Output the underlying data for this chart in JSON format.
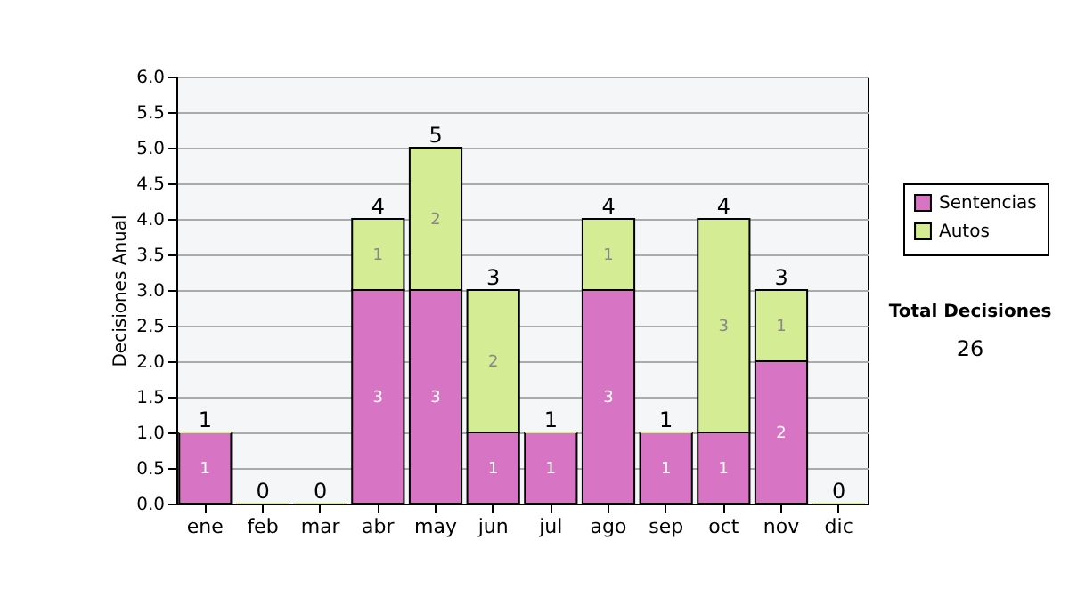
{
  "chart_data": {
    "type": "bar",
    "stacked": true,
    "ylabel": "Decisiones Anual",
    "categories": [
      "ene",
      "feb",
      "mar",
      "abr",
      "may",
      "jun",
      "jul",
      "ago",
      "sep",
      "oct",
      "nov",
      "dic"
    ],
    "series": [
      {
        "name": "Sentencias",
        "color": "#d774c4",
        "values": [
          1,
          0,
          0,
          3,
          3,
          1,
          1,
          3,
          1,
          1,
          2,
          0
        ],
        "value_labels": [
          "1",
          null,
          null,
          "3",
          "3",
          "1",
          "1",
          "3",
          "1",
          "1",
          "2",
          null
        ]
      },
      {
        "name": "Autos",
        "color": "#d4ec94",
        "values": [
          0,
          0,
          0,
          1,
          2,
          2,
          0,
          1,
          0,
          3,
          1,
          0
        ],
        "value_labels": [
          null,
          null,
          null,
          "1",
          "2",
          "2",
          null,
          "1",
          null,
          "3",
          "1",
          null
        ]
      }
    ],
    "totals": [
      "1",
      "0",
      "0",
      "4",
      "5",
      "3",
      "1",
      "4",
      "1",
      "4",
      "3",
      "0"
    ],
    "ylim": [
      0,
      6
    ],
    "yticks": [
      {
        "value": 0,
        "label": "0.0"
      },
      {
        "value": 0.5,
        "label": "0.5"
      },
      {
        "value": 1,
        "label": "1.0"
      },
      {
        "value": 1.5,
        "label": "1.5"
      },
      {
        "value": 2,
        "label": "2.0"
      },
      {
        "value": 2.5,
        "label": "2.5"
      },
      {
        "value": 3,
        "label": "3.0"
      },
      {
        "value": 3.5,
        "label": "3.5"
      },
      {
        "value": 4,
        "label": "4.0"
      },
      {
        "value": 4.5,
        "label": "4.5"
      },
      {
        "value": 5,
        "label": "5.0"
      },
      {
        "value": 5.5,
        "label": "5.5"
      },
      {
        "value": 6,
        "label": "6.0"
      }
    ],
    "grid": "y",
    "legend": "right",
    "annotations": [
      "Total Decisiones",
      "26"
    ]
  }
}
